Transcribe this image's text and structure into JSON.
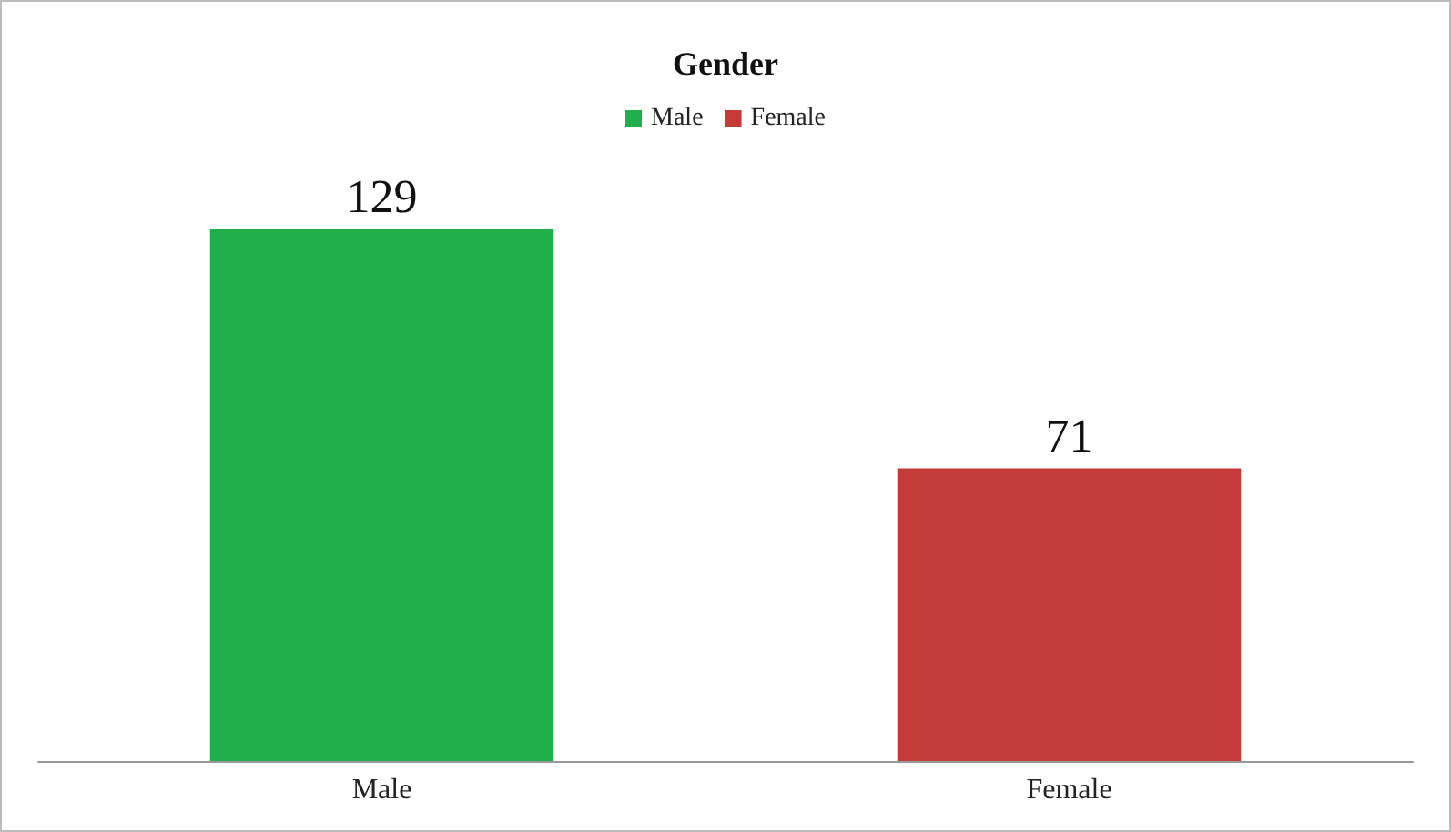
{
  "chart_data": {
    "type": "bar",
    "title": "Gender",
    "categories": [
      "Male",
      "Female"
    ],
    "series": [
      {
        "name": "Male",
        "color": "#1fb04c",
        "values": [
          129,
          null
        ]
      },
      {
        "name": "Female",
        "color": "#c43a36",
        "values": [
          null,
          71
        ]
      }
    ],
    "data_labels": true,
    "legend": "top",
    "tick_labels": "x"
  }
}
